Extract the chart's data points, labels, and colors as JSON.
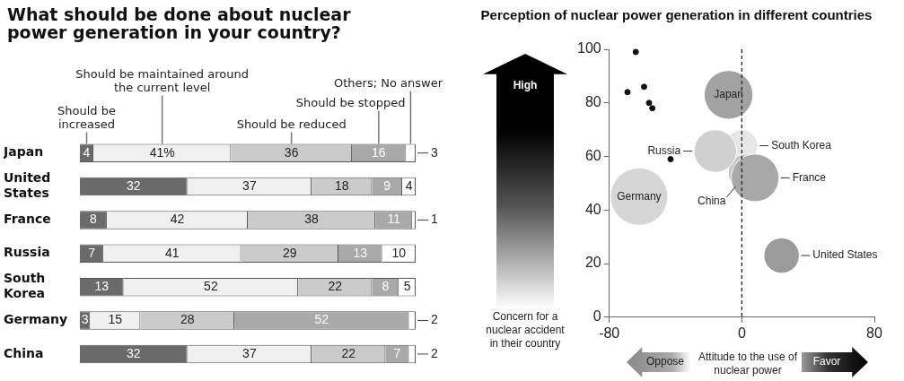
{
  "chart_data": [
    {
      "type": "bar",
      "orientation": "horizontal",
      "stacked": true,
      "title": "What should be done about nuclear power generation in your country?",
      "tick_labels": "y",
      "categories": [
        "Japan",
        "United States",
        "France",
        "Russia",
        "South Korea",
        "Germany",
        "China"
      ],
      "series": [
        {
          "name": "Should be increased",
          "color": "#6a6a6a",
          "values": [
            4,
            32,
            8,
            7,
            13,
            3,
            32
          ],
          "value_labels": [
            "4",
            "32",
            "8",
            "7",
            "13",
            "3",
            "32"
          ]
        },
        {
          "name": "Should be maintained around the current level",
          "color": "#f0f0f0",
          "values": [
            41,
            37,
            42,
            41,
            52,
            15,
            37
          ],
          "value_labels": [
            "41%",
            "37",
            "42",
            "41",
            "52",
            "15",
            "37"
          ]
        },
        {
          "name": "Should be reduced",
          "color": "#cbcbcb",
          "values": [
            36,
            18,
            38,
            29,
            22,
            28,
            22
          ],
          "value_labels": [
            "36",
            "18",
            "38",
            "29",
            "22",
            "28",
            "22"
          ]
        },
        {
          "name": "Should be stopped",
          "color": "#a9a9a9",
          "values": [
            16,
            9,
            11,
            13,
            8,
            52,
            7
          ],
          "value_labels": [
            "16",
            "9",
            "11",
            "13",
            "8",
            "52",
            "7"
          ]
        },
        {
          "name": "Others; No answer",
          "color": "#ffffff",
          "values": [
            3,
            4,
            1,
            10,
            5,
            2,
            2
          ],
          "value_labels": [
            "3",
            "4",
            "1",
            "10",
            "5",
            "2",
            "2"
          ]
        }
      ]
    },
    {
      "type": "bubble",
      "title": "Perception of nuclear power generation in different countries",
      "xlabel": "Attitude to the use of nuclear power",
      "ylabel": "Concern for a nuclear accident in their country",
      "annotations": [
        "High",
        "Oppose",
        "Favor"
      ],
      "xlim": [
        -80,
        80
      ],
      "xticks": [
        -80,
        0,
        80
      ],
      "ylim": [
        0,
        100
      ],
      "yticks": [
        0,
        20,
        40,
        60,
        80,
        100
      ],
      "marker": "circle",
      "ref_lines": [
        {
          "axis": "x",
          "value": 0,
          "line_style": "dashed",
          "color": "#222222"
        }
      ],
      "series": [
        {
          "name": "Germany",
          "color": "#d6d6d6",
          "x": [
            -62
          ],
          "values": [
            45
          ],
          "sizes": [
            1
          ]
        },
        {
          "name": "Japan",
          "color": "#a2a2a2",
          "x": [
            -8
          ],
          "values": [
            83
          ],
          "sizes": [
            0.72
          ]
        },
        {
          "name": "Russia",
          "color": "#d0d0d0",
          "x": [
            -16
          ],
          "values": [
            62
          ],
          "sizes": [
            0.55
          ]
        },
        {
          "name": "France",
          "color": "#a8a8a8",
          "x": [
            8
          ],
          "values": [
            52
          ],
          "sizes": [
            0.69
          ]
        },
        {
          "name": "China",
          "color": "#c4c4c4",
          "x": [
            3
          ],
          "values": [
            54
          ],
          "sizes": [
            0.42
          ]
        },
        {
          "name": "South Korea",
          "color": "#e6e6e6",
          "x": [
            0
          ],
          "values": [
            64
          ],
          "sizes": [
            0.31
          ]
        },
        {
          "name": "United States",
          "color": "#9b9b9b",
          "x": [
            24
          ],
          "values": [
            23
          ],
          "sizes": [
            0.38
          ]
        },
        {
          "type": "scatter",
          "color": "#111111",
          "x": [
            -64,
            -69,
            -59,
            -56,
            -54,
            -43
          ],
          "values": [
            99,
            84,
            86,
            80,
            78,
            59
          ]
        }
      ]
    }
  ]
}
